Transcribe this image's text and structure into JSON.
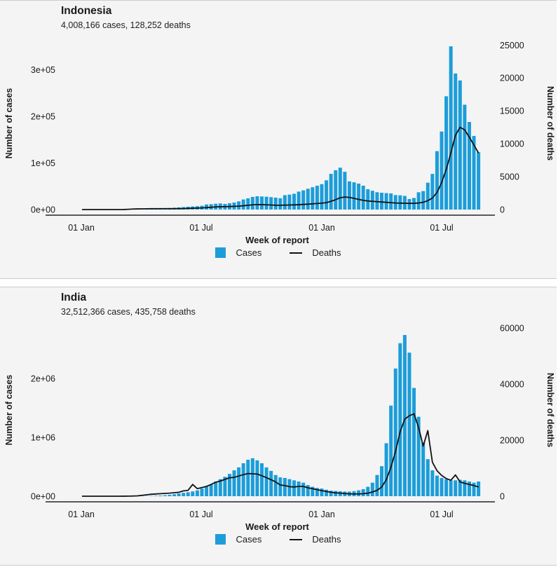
{
  "page": {
    "background": "#ffffff",
    "panel_background": "#f4f4f4",
    "separator_color": "#cbcbcb"
  },
  "colors": {
    "bars": "#1c9dd9",
    "deaths_line": "#121212",
    "axis_line": "#59595b",
    "tick_text": "#1a1a1a"
  },
  "chart_data": [
    {
      "type": "bar",
      "title": "Indonesia",
      "subtitle": "4,008,166 cases, 128,252 deaths",
      "xlabel": "Week of report",
      "ylabel_left": "Number of cases",
      "ylabel_right": "Number of deaths",
      "x_axis": {
        "start_week": "2019-12-30",
        "interval": "week",
        "n_weeks": 87,
        "tick_labels": [
          "01 Jan",
          "01 Jul",
          "01 Jan",
          "01 Jul"
        ]
      },
      "ylim_left": [
        0,
        370000
      ],
      "ylim_right": [
        0,
        26200
      ],
      "left_ticks": {
        "values": [
          0,
          100000,
          200000,
          300000
        ],
        "labels": [
          "0e+00",
          "1e+05",
          "2e+05",
          "3e+05"
        ]
      },
      "right_ticks": {
        "values": [
          0,
          5000,
          10000,
          15000,
          20000,
          25000
        ],
        "labels": [
          "0",
          "5000",
          "10000",
          "15000",
          "20000",
          "25000"
        ]
      },
      "legend_position": "bottom",
      "grid": false,
      "series": [
        {
          "name": "Cases",
          "kind": "bar",
          "axis": "left",
          "values": [
            0,
            0,
            0,
            0,
            0,
            0,
            0,
            0,
            0,
            200,
            800,
            1200,
            1500,
            1700,
            2000,
            2300,
            2500,
            2800,
            3200,
            3400,
            4000,
            4700,
            5400,
            6000,
            6700,
            7300,
            8200,
            11000,
            11500,
            12500,
            13100,
            12100,
            13500,
            15100,
            17600,
            21600,
            24100,
            27100,
            28600,
            28100,
            27600,
            26600,
            25600,
            24300,
            30900,
            32100,
            33900,
            38500,
            41200,
            44700,
            47900,
            51200,
            54500,
            62800,
            76600,
            84400,
            89900,
            81100,
            60500,
            58500,
            55700,
            51200,
            43600,
            40400,
            37200,
            36100,
            35300,
            34700,
            31100,
            30600,
            29300,
            22600,
            24900,
            37100,
            39700,
            57700,
            76500,
            125400,
            167500,
            243100,
            350300,
            292000,
            277000,
            225000,
            188000,
            158000,
            123000
          ]
        },
        {
          "name": "Deaths",
          "kind": "line",
          "axis": "right",
          "values": [
            0,
            0,
            0,
            0,
            0,
            0,
            0,
            0,
            0,
            5,
            40,
            80,
            100,
            110,
            120,
            135,
            125,
            125,
            130,
            125,
            130,
            140,
            150,
            180,
            205,
            230,
            255,
            300,
            350,
            400,
            430,
            440,
            460,
            485,
            520,
            580,
            650,
            720,
            760,
            750,
            720,
            690,
            660,
            650,
            670,
            690,
            715,
            740,
            780,
            820,
            870,
            920,
            970,
            1050,
            1250,
            1500,
            1800,
            1900,
            1850,
            1700,
            1550,
            1400,
            1300,
            1250,
            1200,
            1150,
            1100,
            1050,
            1000,
            980,
            960,
            940,
            950,
            1000,
            1100,
            1350,
            1750,
            2600,
            4100,
            6100,
            8600,
            11300,
            12500,
            12100,
            11000,
            9800,
            8600
          ]
        }
      ]
    },
    {
      "type": "bar",
      "title": "India",
      "subtitle": "32,512,366 cases, 435,758 deaths",
      "xlabel": "Week of report",
      "ylabel_left": "Number of cases",
      "ylabel_right": "Number of deaths",
      "x_axis": {
        "start_week": "2019-12-30",
        "interval": "week",
        "n_weeks": 87,
        "tick_labels": [
          "01 Jan",
          "01 Jul",
          "01 Jan",
          "01 Jul"
        ]
      },
      "ylim_left": [
        0,
        2930000
      ],
      "ylim_right": [
        0,
        61500
      ],
      "left_ticks": {
        "values": [
          0,
          1000000,
          2000000
        ],
        "labels": [
          "0e+00",
          "1e+06",
          "2e+06"
        ]
      },
      "right_ticks": {
        "values": [
          0,
          20000,
          40000,
          60000
        ],
        "labels": [
          "0",
          "20000",
          "40000",
          "60000"
        ]
      },
      "legend_position": "bottom",
      "grid": false,
      "series": [
        {
          "name": "Cases",
          "kind": "bar",
          "axis": "left",
          "values": [
            0,
            0,
            0,
            0,
            0,
            0,
            0,
            0,
            0,
            30,
            80,
            360,
            700,
            1500,
            3600,
            6000,
            9000,
            11500,
            17000,
            24000,
            34000,
            46000,
            57000,
            67000,
            82000,
            100000,
            130000,
            160000,
            200000,
            250000,
            290000,
            330000,
            380000,
            440000,
            490000,
            560000,
            620000,
            645000,
            610000,
            560000,
            490000,
            430000,
            360000,
            320000,
            310000,
            290000,
            270000,
            250000,
            230000,
            190000,
            160000,
            140000,
            130000,
            110000,
            95000,
            90000,
            85000,
            80000,
            78000,
            86000,
            100000,
            120000,
            160000,
            230000,
            360000,
            510000,
            900000,
            1540000,
            2170000,
            2600000,
            2740000,
            2440000,
            1840000,
            1350000,
            910000,
            630000,
            440000,
            350000,
            310000,
            290000,
            270000,
            270000,
            280000,
            270000,
            250000,
            230000,
            250000
          ]
        },
        {
          "name": "Deaths",
          "kind": "line",
          "axis": "right",
          "values": [
            0,
            0,
            0,
            0,
            0,
            0,
            0,
            0,
            0,
            10,
            30,
            60,
            120,
            300,
            500,
            700,
            800,
            900,
            1000,
            1100,
            1250,
            1400,
            1900,
            2100,
            4200,
            2700,
            3100,
            3500,
            4200,
            5000,
            5400,
            6000,
            6600,
            6700,
            7200,
            7700,
            8100,
            8000,
            7900,
            7300,
            6600,
            5900,
            5100,
            4000,
            3800,
            3400,
            3300,
            3500,
            3500,
            3000,
            2700,
            2300,
            2000,
            1700,
            1400,
            1200,
            1100,
            950,
            850,
            800,
            820,
            900,
            1100,
            1500,
            2100,
            3300,
            5900,
            10300,
            16000,
            23000,
            27500,
            28700,
            29400,
            24500,
            17900,
            23400,
            12100,
            9100,
            7400,
            6300,
            5700,
            7600,
            5100,
            4600,
            4200,
            3800,
            3300
          ]
        }
      ]
    }
  ]
}
